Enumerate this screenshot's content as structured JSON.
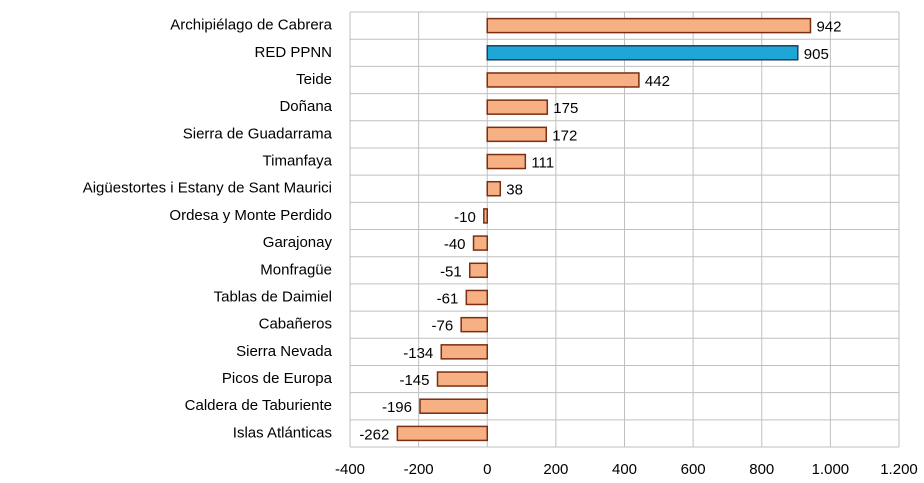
{
  "chart_data": {
    "type": "bar",
    "orientation": "horizontal",
    "categories": [
      "Archipiélago de Cabrera",
      "RED PPNN",
      "Teide",
      "Doñana",
      "Sierra de Guadarrama",
      "Timanfaya",
      "Aigüestortes i Estany de Sant Maurici",
      "Ordesa y Monte Perdido",
      "Garajonay",
      "Monfragüe",
      "Tablas de Daimiel",
      "Cabañeros",
      "Sierra Nevada",
      "Picos de Europa",
      "Caldera de Taburiente",
      "Islas Atlánticas"
    ],
    "values": [
      942,
      905,
      442,
      175,
      172,
      111,
      38,
      -10,
      -40,
      -51,
      -61,
      -76,
      -134,
      -145,
      -196,
      -262
    ],
    "colors": [
      "#f7b083",
      "#1ea6d6",
      "#f7b083",
      "#f7b083",
      "#f7b083",
      "#f7b083",
      "#f7b083",
      "#f7b083",
      "#f7b083",
      "#f7b083",
      "#f7b083",
      "#f7b083",
      "#f7b083",
      "#f7b083",
      "#f7b083",
      "#f7b083"
    ],
    "xlim": [
      -400,
      1200
    ],
    "xticks": [
      -400,
      -200,
      0,
      200,
      400,
      600,
      800,
      {
        "value": 1000,
        "label": "1.000"
      },
      {
        "value": 1200,
        "label": "1.200"
      }
    ],
    "grid": true
  }
}
